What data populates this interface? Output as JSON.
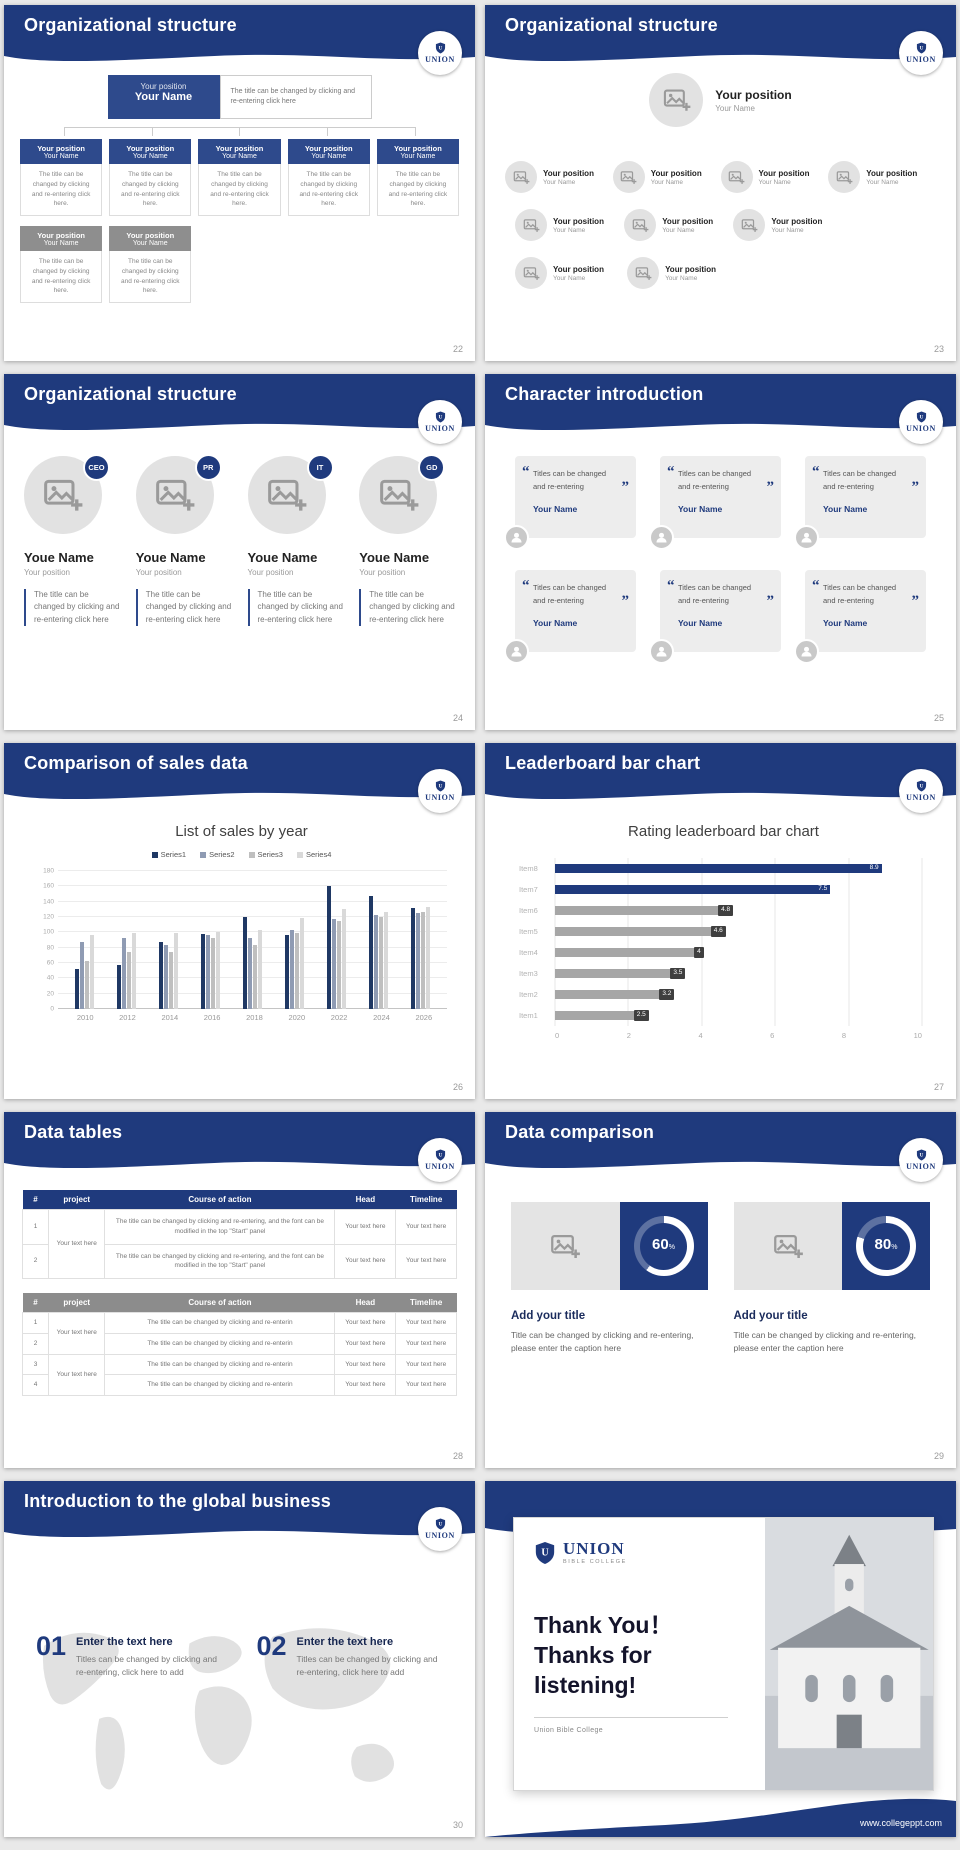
{
  "common": {
    "logo": "UNION"
  },
  "slides": {
    "s22": {
      "title": "Organizational structure",
      "page": "22",
      "root": {
        "position": "Your position",
        "name": "Your Name"
      },
      "root_desc": "The title can be changed by clicking and re-entering click here",
      "node_desc": "The title can be changed by clicking and re-entering click here.",
      "row1": [
        {
          "position": "Your position",
          "name": "Your Name"
        },
        {
          "position": "Your position",
          "name": "Your Name"
        },
        {
          "position": "Your position",
          "name": "Your Name"
        },
        {
          "position": "Your position",
          "name": "Your Name"
        },
        {
          "position": "Your position",
          "name": "Your Name"
        }
      ],
      "row2": [
        {
          "position": "Your position",
          "name": "Your Name"
        },
        {
          "position": "Your position",
          "name": "Your Name"
        }
      ]
    },
    "s23": {
      "title": "Organizational structure",
      "page": "23",
      "root": {
        "position": "Your position",
        "name": "Your Name"
      },
      "row1": [
        {
          "position": "Your position",
          "name": "Your Name"
        },
        {
          "position": "Your position",
          "name": "Your Name"
        },
        {
          "position": "Your position",
          "name": "Your Name"
        },
        {
          "position": "Your position",
          "name": "Your Name"
        }
      ],
      "row2": [
        {
          "position": "Your position",
          "name": "Your Name"
        },
        {
          "position": "Your position",
          "name": "Your Name"
        },
        {
          "position": "Your position",
          "name": "Your Name"
        }
      ],
      "row3": [
        {
          "position": "Your position",
          "name": "Your Name"
        },
        {
          "position": "Your position",
          "name": "Your Name"
        }
      ]
    },
    "s24": {
      "title": "Organizational structure",
      "page": "24",
      "profiles": [
        {
          "badge": "CEO",
          "name": "Youe Name",
          "position": "Your position",
          "desc": "The title can be changed by clicking and re-entering click here"
        },
        {
          "badge": "PR",
          "name": "Youe Name",
          "position": "Your position",
          "desc": "The title can be changed by clicking and re-entering click here"
        },
        {
          "badge": "IT",
          "name": "Youe Name",
          "position": "Your position",
          "desc": "The title can be changed by clicking and re-entering click here"
        },
        {
          "badge": "GD",
          "name": "Youe Name",
          "position": "Your position",
          "desc": "The title can be changed by clicking and re-entering click here"
        }
      ]
    },
    "s25": {
      "title": "Character introduction",
      "page": "25",
      "cards": [
        {
          "text": "Titles can be changed and re-entering",
          "name": "Your Name"
        },
        {
          "text": "Titles can be changed and re-entering",
          "name": "Your Name"
        },
        {
          "text": "Titles can be changed and re-entering",
          "name": "Your Name"
        },
        {
          "text": "Titles can be changed and re-entering",
          "name": "Your Name"
        },
        {
          "text": "Titles can be changed and re-entering",
          "name": "Your Name"
        },
        {
          "text": "Titles can be changed and re-entering",
          "name": "Your Name"
        }
      ]
    },
    "s26": {
      "title": "Comparison of sales data",
      "page": "26",
      "chart_data": {
        "type": "bar",
        "title": "List of sales by year",
        "categories": [
          "2010",
          "2012",
          "2014",
          "2016",
          "2018",
          "2020",
          "2022",
          "2024",
          "2026"
        ],
        "series": [
          {
            "name": "Series1",
            "color": "#1f3864",
            "values": [
              52,
              58,
              88,
              98,
              120,
              97,
              160,
              148,
              132
            ]
          },
          {
            "name": "Series2",
            "color": "#8f9bb3",
            "values": [
              88,
              93,
              83,
              97,
              93,
              103,
              118,
              122,
              125
            ]
          },
          {
            "name": "Series3",
            "color": "#bfbfbf",
            "values": [
              62,
              75,
              75,
              93,
              83,
              99,
              115,
              120,
              127
            ]
          },
          {
            "name": "Series4",
            "color": "#d9d9d9",
            "values": [
              97,
              99,
              99,
              101,
              103,
              119,
              130,
              127,
              133
            ]
          }
        ],
        "ylim": [
          0,
          180
        ],
        "ystep": 20,
        "legend_position": "top",
        "grid": true
      }
    },
    "s27": {
      "title": "Leaderboard bar chart",
      "page": "27",
      "chart_data": {
        "type": "bar",
        "orientation": "horizontal",
        "title": "Rating leaderboard bar chart",
        "categories": [
          "Item8",
          "Item7",
          "Item6",
          "Item5",
          "Item4",
          "Item3",
          "Item2",
          "Item1"
        ],
        "values": [
          8.9,
          7.5,
          4.8,
          4.6,
          4,
          3.5,
          3.2,
          2.5
        ],
        "colors": [
          "#1f3a7d",
          "#1f3a7d",
          "#a6a6a6",
          "#a6a6a6",
          "#a6a6a6",
          "#a6a6a6",
          "#a6a6a6",
          "#a6a6a6"
        ],
        "xlim": [
          0,
          10
        ],
        "xticks": [
          0,
          2,
          4,
          6,
          8,
          10
        ],
        "grid": true
      }
    },
    "s28": {
      "title": "Data tables",
      "page": "28",
      "table1": {
        "headers": [
          "#",
          "project",
          "Course of action",
          "Head",
          "Timeline"
        ],
        "project": "Your text here",
        "rows": [
          {
            "num": "1",
            "action": "The title can be changed by clicking and re-entering, and the font can be modified in the top \"Start\" panel",
            "head": "Your text here",
            "timeline": "Your text here"
          },
          {
            "num": "2",
            "action": "The title can be changed by clicking and re-entering, and the font can be modified in the top \"Start\" panel",
            "head": "Your text here",
            "timeline": "Your text here"
          }
        ]
      },
      "table2": {
        "headers": [
          "#",
          "project",
          "Course of action",
          "Head",
          "Timeline"
        ],
        "project1": "Your text here",
        "project2": "Your text here",
        "rows": [
          {
            "num": "1",
            "action": "The title can be changed by clicking and re-enterin",
            "head": "Your text here",
            "timeline": "Your text here"
          },
          {
            "num": "2",
            "action": "The title can be changed by clicking and re-enterin",
            "head": "Your text here",
            "timeline": "Your text here"
          },
          {
            "num": "3",
            "action": "The title can be changed by clicking and re-enterin",
            "head": "Your text here",
            "timeline": "Your text here"
          },
          {
            "num": "4",
            "action": "The title can be changed by clicking and re-enterin",
            "head": "Your text here",
            "timeline": "Your text here"
          }
        ]
      }
    },
    "s29": {
      "title": "Data comparison",
      "page": "29",
      "panels": [
        {
          "percent": "60",
          "pct_sign": "%",
          "heading": "Add your title",
          "desc": "Title can be changed by clicking and re-entering, please enter the caption here"
        },
        {
          "percent": "80",
          "pct_sign": "%",
          "heading": "Add your title",
          "desc": "Title can be changed by clicking and re-entering, please enter the caption here"
        }
      ]
    },
    "s30": {
      "title": "Introduction to the global business",
      "page": "30",
      "items": [
        {
          "num": "01",
          "heading": "Enter the text here",
          "desc": "Titles can be changed by clicking and re-entering, click here to add"
        },
        {
          "num": "02",
          "heading": "Enter the text here",
          "desc": "Titles can be changed by clicking and re-entering, click here to add"
        }
      ]
    },
    "s31": {
      "logo": "UNION",
      "logo_sub": "BIBLE COLLEGE",
      "line1": "Thank You！",
      "line2": "Thanks for listening!",
      "caption": "Union Bible College",
      "url": "www.collegeppt.com"
    }
  }
}
